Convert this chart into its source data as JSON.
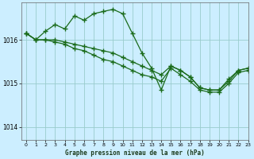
{
  "title": "Graphe pression niveau de la mer (hPa)",
  "background_color": "#cceeff",
  "grid_color": "#99cccc",
  "line_color": "#1a6b1a",
  "xlim": [
    -0.5,
    23
  ],
  "ylim": [
    1013.7,
    1016.85
  ],
  "yticks": [
    1014,
    1015,
    1016
  ],
  "xticks": [
    0,
    1,
    2,
    3,
    4,
    5,
    6,
    7,
    8,
    9,
    10,
    11,
    12,
    13,
    14,
    15,
    16,
    17,
    18,
    19,
    20,
    21,
    22,
    23
  ],
  "line1_x": [
    0,
    1,
    2,
    3,
    4,
    5,
    6,
    7,
    8,
    9,
    10,
    11,
    12,
    13,
    14,
    15,
    16,
    17,
    18,
    19,
    20,
    21,
    22,
    23
  ],
  "line1_y": [
    1016.15,
    1016.0,
    1016.2,
    1016.35,
    1016.25,
    1016.55,
    1016.45,
    1016.6,
    1016.65,
    1016.7,
    1016.6,
    1016.15,
    1015.7,
    1015.35,
    1014.85,
    1015.4,
    1015.3,
    1015.15,
    1014.9,
    1014.85,
    1014.85,
    1015.1,
    1015.3,
    1015.35
  ],
  "line2_x": [
    0,
    1,
    2,
    3,
    4,
    5,
    6,
    7,
    8,
    9,
    10,
    11,
    12,
    13,
    14,
    15,
    16,
    17,
    18,
    19,
    20,
    21,
    22,
    23
  ],
  "line2_y": [
    1016.15,
    1016.0,
    1016.0,
    1016.0,
    1015.95,
    1015.9,
    1015.85,
    1015.8,
    1015.75,
    1015.7,
    1015.6,
    1015.5,
    1015.4,
    1015.3,
    1015.2,
    1015.4,
    1015.3,
    1015.15,
    1014.9,
    1014.85,
    1014.85,
    1015.05,
    1015.3,
    1015.35
  ],
  "line3_x": [
    0,
    1,
    2,
    3,
    4,
    5,
    6,
    7,
    8,
    9,
    10,
    11,
    12,
    13,
    14,
    15,
    16,
    17,
    18,
    19,
    20,
    21,
    22,
    23
  ],
  "line3_y": [
    1016.15,
    1016.0,
    1016.0,
    1015.95,
    1015.9,
    1015.8,
    1015.75,
    1015.65,
    1015.55,
    1015.5,
    1015.4,
    1015.3,
    1015.2,
    1015.15,
    1015.05,
    1015.35,
    1015.2,
    1015.05,
    1014.85,
    1014.8,
    1014.8,
    1015.0,
    1015.25,
    1015.3
  ]
}
